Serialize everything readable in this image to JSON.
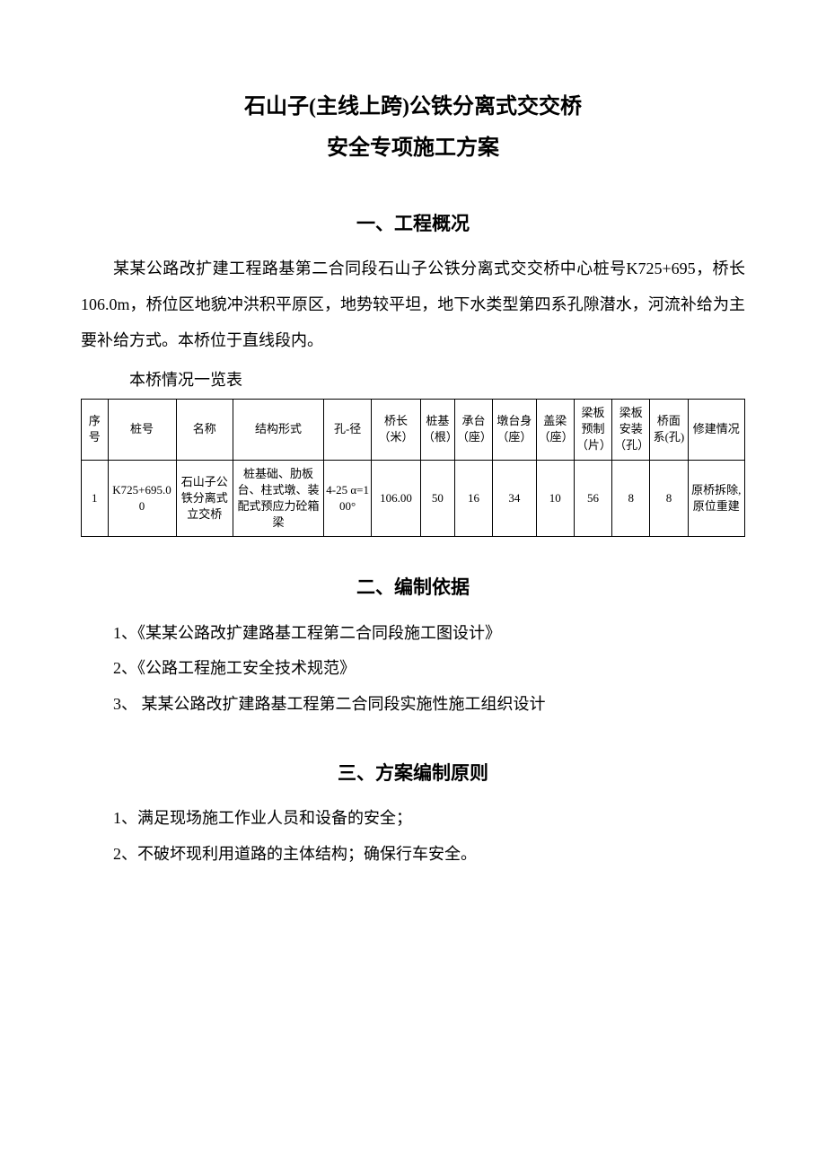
{
  "title_main": "石山子(主线上跨)公铁分离式交交桥",
  "title_sub": "安全专项施工方案",
  "section1": {
    "heading": "一、工程概况",
    "paragraph": "某某公路改扩建工程路基第二合同段石山子公铁分离式交交桥中心桩号K725+695，桥长106.0m，桥位区地貌冲洪积平原区，地势较平坦，地下水类型第四系孔隙潜水，河流补给为主要补给方式。本桥位于直线段内。",
    "table_caption": "本桥情况一览表",
    "table": {
      "col_widths": [
        "28px",
        "72px",
        "60px",
        "96px",
        "50px",
        "52px",
        "36px",
        "40px",
        "46px",
        "40px",
        "40px",
        "40px",
        "40px",
        "60px"
      ],
      "headers": [
        "序号",
        "桩号",
        "名称",
        "结构形式",
        "孔-径",
        "桥长（米）",
        "桩基（根）",
        "承台（座）",
        "墩台身（座）",
        "盖梁（座）",
        "梁板预制（片）",
        "梁板安装（孔）",
        "桥面系(孔)",
        "修建情况"
      ],
      "rows": [
        [
          "1",
          "K725+695.00",
          "石山子公铁分离式立交桥",
          "桩基础、肋板台、柱式墩、装配式预应力砼箱梁",
          "4-25 α=100°",
          "106.00",
          "50",
          "16",
          "34",
          "10",
          "56",
          "8",
          "8",
          "原桥拆除,原位重建"
        ]
      ]
    }
  },
  "section2": {
    "heading": "二、编制依据",
    "items": [
      "1、《某某公路改扩建路基工程第二合同段施工图设计》",
      "2、《公路工程施工安全技术规范》",
      "3、 某某公路改扩建路基工程第二合同段实施性施工组织设计"
    ]
  },
  "section3": {
    "heading": "三、方案编制原则",
    "items": [
      "1、满足现场施工作业人员和设备的安全；",
      "2、不破坏现利用道路的主体结构；确保行车安全。"
    ]
  },
  "colors": {
    "text": "#000000",
    "background": "#ffffff",
    "border": "#000000"
  },
  "typography": {
    "title_fontsize": 24,
    "section_heading_fontsize": 21,
    "body_fontsize": 18,
    "table_fontsize": 13,
    "font_family": "SimSun"
  }
}
